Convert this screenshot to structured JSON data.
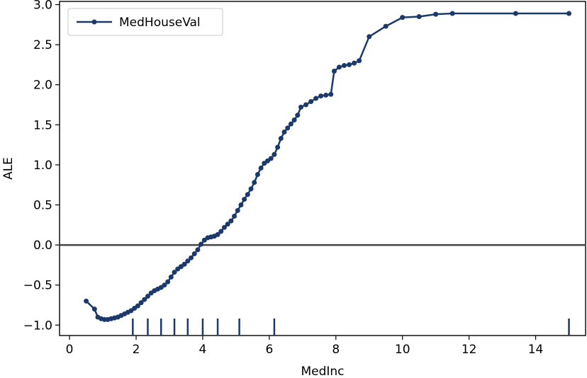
{
  "chart_data": {
    "type": "line",
    "title": "",
    "xlabel": "MedInc",
    "ylabel": "ALE",
    "xlim": [
      -0.3,
      15.5
    ],
    "ylim": [
      -1.13,
      3.04
    ],
    "xticks": [
      0,
      2,
      4,
      6,
      8,
      10,
      12,
      14
    ],
    "xtick_labels": [
      "0",
      "2",
      "4",
      "6",
      "8",
      "10",
      "12",
      "14"
    ],
    "yticks": [
      -1.0,
      -0.5,
      0.0,
      0.5,
      1.0,
      1.5,
      2.0,
      2.5,
      3.0
    ],
    "ytick_labels": [
      "−1.0",
      "−0.5",
      "0.0",
      "0.5",
      "1.0",
      "1.5",
      "2.0",
      "2.5",
      "3.0"
    ],
    "grid": false,
    "legend": {
      "placement": "top-left"
    },
    "zero_line": {
      "y": 0,
      "color": "#444444"
    },
    "deciles": [
      1.9,
      2.35,
      2.75,
      3.15,
      3.55,
      4.0,
      4.45,
      5.1,
      6.15,
      15.0
    ],
    "series": [
      {
        "name": "MedHouseVal",
        "color": "#1b3a6b",
        "x": [
          0.5,
          0.75,
          0.85,
          0.95,
          1.05,
          1.15,
          1.25,
          1.35,
          1.45,
          1.55,
          1.65,
          1.75,
          1.85,
          1.95,
          2.05,
          2.15,
          2.25,
          2.35,
          2.45,
          2.55,
          2.65,
          2.75,
          2.85,
          2.95,
          3.05,
          3.15,
          3.25,
          3.35,
          3.45,
          3.55,
          3.65,
          3.75,
          3.85,
          3.95,
          4.05,
          4.15,
          4.25,
          4.35,
          4.45,
          4.55,
          4.65,
          4.75,
          4.85,
          4.95,
          5.05,
          5.15,
          5.25,
          5.35,
          5.45,
          5.55,
          5.65,
          5.75,
          5.85,
          5.95,
          6.05,
          6.15,
          6.25,
          6.35,
          6.45,
          6.55,
          6.65,
          6.75,
          6.85,
          6.95,
          7.1,
          7.25,
          7.4,
          7.55,
          7.7,
          7.85,
          7.95,
          8.1,
          8.25,
          8.4,
          8.55,
          8.7,
          9.0,
          9.5,
          10.0,
          10.5,
          11.0,
          11.5,
          13.4,
          15.0
        ],
        "y": [
          -0.7,
          -0.8,
          -0.9,
          -0.92,
          -0.93,
          -0.93,
          -0.92,
          -0.91,
          -0.9,
          -0.88,
          -0.86,
          -0.84,
          -0.82,
          -0.79,
          -0.76,
          -0.72,
          -0.68,
          -0.64,
          -0.6,
          -0.57,
          -0.55,
          -0.53,
          -0.5,
          -0.46,
          -0.4,
          -0.34,
          -0.3,
          -0.27,
          -0.24,
          -0.2,
          -0.16,
          -0.11,
          -0.06,
          0.01,
          0.06,
          0.09,
          0.1,
          0.11,
          0.13,
          0.17,
          0.22,
          0.26,
          0.3,
          0.36,
          0.43,
          0.5,
          0.57,
          0.63,
          0.7,
          0.78,
          0.88,
          0.96,
          1.02,
          1.05,
          1.08,
          1.13,
          1.22,
          1.33,
          1.41,
          1.46,
          1.51,
          1.56,
          1.62,
          1.72,
          1.75,
          1.79,
          1.83,
          1.86,
          1.87,
          1.88,
          2.17,
          2.22,
          2.24,
          2.25,
          2.27,
          2.3,
          2.6,
          2.73,
          2.84,
          2.85,
          2.88,
          2.89,
          2.89,
          2.89
        ]
      }
    ]
  }
}
